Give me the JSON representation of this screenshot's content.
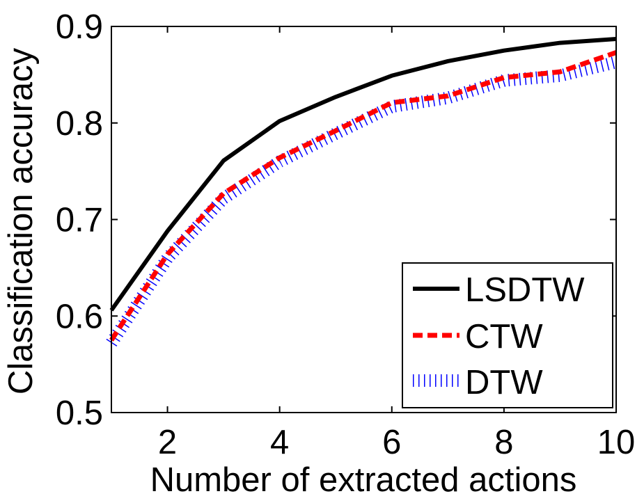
{
  "chart_data": {
    "type": "line",
    "title": "",
    "xlabel": "Number of extracted actions",
    "ylabel": "Classification accuracy",
    "xlim": [
      1,
      10
    ],
    "ylim": [
      0.5,
      0.9
    ],
    "xticks": [
      2,
      4,
      6,
      8,
      10
    ],
    "yticks": [
      0.5,
      0.6,
      0.7,
      0.8,
      0.9
    ],
    "xtick_labels": [
      "2",
      "4",
      "6",
      "8",
      "10"
    ],
    "ytick_labels": [
      "0.5",
      "0.6",
      "0.7",
      "0.8",
      "0.9"
    ],
    "grid": false,
    "legend_position": "bottom-right",
    "x": [
      1,
      2,
      3,
      4,
      5,
      6,
      7,
      8,
      9,
      10
    ],
    "series": [
      {
        "name": "LSDTW",
        "color": "#000000",
        "style": "solid",
        "values": [
          0.606,
          0.688,
          0.761,
          0.802,
          0.827,
          0.849,
          0.864,
          0.875,
          0.883,
          0.887
        ]
      },
      {
        "name": "CTW",
        "color": "#ff0000",
        "style": "dashed",
        "values": [
          0.575,
          0.664,
          0.727,
          0.764,
          0.792,
          0.821,
          0.828,
          0.847,
          0.853,
          0.873
        ]
      },
      {
        "name": "DTW",
        "color": "#0000ff",
        "style": "dotted",
        "values": [
          0.572,
          0.66,
          0.722,
          0.76,
          0.789,
          0.817,
          0.826,
          0.844,
          0.849,
          0.863
        ]
      }
    ]
  }
}
